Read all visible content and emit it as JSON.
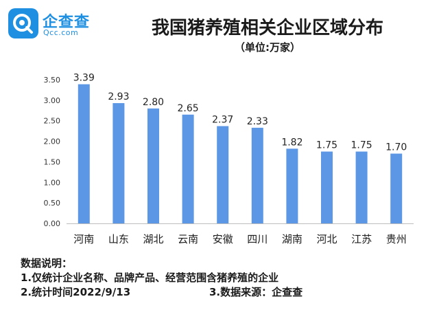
{
  "brand": {
    "name_cn": "企查查",
    "name_en": "Qcc.com",
    "color": "#1e8fe1"
  },
  "header": {
    "title": "我国猪养殖相关企业区域分布",
    "subtitle": "（单位:万家）"
  },
  "chart_data": {
    "type": "bar",
    "title": "我国猪养殖相关企业区域分布",
    "unit": "（单位:万家）",
    "categories": [
      "河南",
      "山东",
      "湖北",
      "云南",
      "安徽",
      "四川",
      "湖南",
      "河北",
      "江苏",
      "贵州"
    ],
    "values": [
      3.39,
      2.93,
      2.8,
      2.65,
      2.37,
      2.33,
      1.82,
      1.75,
      1.75,
      1.7
    ],
    "value_labels": [
      "3.39",
      "2.93",
      "2.80",
      "2.65",
      "2.37",
      "2.33",
      "1.82",
      "1.75",
      "1.75",
      "1.70"
    ],
    "ylim": [
      0,
      3.5
    ],
    "yticks": [
      "0.00",
      "0.50",
      "1.00",
      "1.50",
      "2.00",
      "2.50",
      "3.00",
      "3.50"
    ],
    "grid": false,
    "bar_color": "#5b97e5"
  },
  "notes": {
    "heading": "数据说明：",
    "line1": "1.仅统计企业名称、品牌产品、经营范围含猪养殖的企业",
    "line2_left": "2.统计时间2022/9/13",
    "line2_right": "3.数据来源：企查查"
  }
}
